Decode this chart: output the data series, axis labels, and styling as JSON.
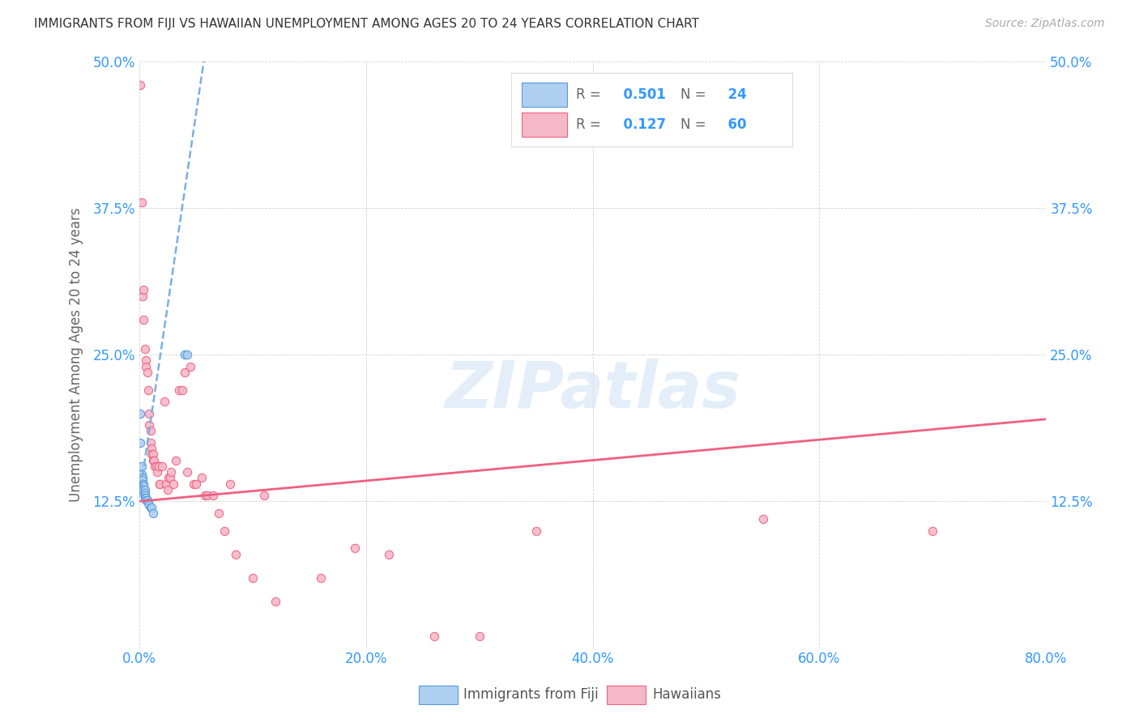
{
  "title": "IMMIGRANTS FROM FIJI VS HAWAIIAN UNEMPLOYMENT AMONG AGES 20 TO 24 YEARS CORRELATION CHART",
  "source": "Source: ZipAtlas.com",
  "ylabel": "Unemployment Among Ages 20 to 24 years",
  "xlim": [
    0.0,
    0.8
  ],
  "ylim": [
    0.0,
    0.5
  ],
  "legend_label1": "Immigrants from Fiji",
  "legend_label2": "Hawaiians",
  "R1": 0.501,
  "N1": 24,
  "R2": 0.127,
  "N2": 60,
  "color_fiji": "#aecff0",
  "color_hawaii": "#f5b8c8",
  "color_fiji_edge": "#5599dd",
  "color_hawaii_edge": "#f06080",
  "color_fiji_line": "#7ab0e0",
  "color_hawaii_line": "#f06080",
  "watermark": "ZIPatlas",
  "fiji_x": [
    0.001,
    0.001,
    0.002,
    0.002,
    0.003,
    0.003,
    0.003,
    0.004,
    0.004,
    0.004,
    0.005,
    0.005,
    0.005,
    0.005,
    0.006,
    0.006,
    0.007,
    0.008,
    0.009,
    0.01,
    0.011,
    0.012,
    0.04,
    0.042
  ],
  "fiji_y": [
    0.2,
    0.175,
    0.155,
    0.148,
    0.145,
    0.143,
    0.14,
    0.14,
    0.138,
    0.135,
    0.135,
    0.132,
    0.13,
    0.128,
    0.128,
    0.126,
    0.126,
    0.124,
    0.122,
    0.12,
    0.12,
    0.115,
    0.25,
    0.25
  ],
  "hawaii_x": [
    0.001,
    0.002,
    0.003,
    0.004,
    0.004,
    0.005,
    0.006,
    0.006,
    0.007,
    0.008,
    0.009,
    0.009,
    0.01,
    0.01,
    0.011,
    0.011,
    0.012,
    0.012,
    0.013,
    0.014,
    0.015,
    0.016,
    0.017,
    0.018,
    0.018,
    0.02,
    0.022,
    0.024,
    0.025,
    0.026,
    0.027,
    0.028,
    0.03,
    0.032,
    0.035,
    0.038,
    0.04,
    0.042,
    0.045,
    0.048,
    0.05,
    0.055,
    0.058,
    0.06,
    0.065,
    0.07,
    0.075,
    0.08,
    0.085,
    0.1,
    0.11,
    0.12,
    0.16,
    0.19,
    0.22,
    0.26,
    0.3,
    0.35,
    0.55,
    0.7
  ],
  "hawaii_y": [
    0.48,
    0.38,
    0.3,
    0.28,
    0.305,
    0.255,
    0.245,
    0.24,
    0.235,
    0.22,
    0.2,
    0.19,
    0.185,
    0.175,
    0.17,
    0.165,
    0.165,
    0.16,
    0.16,
    0.155,
    0.155,
    0.15,
    0.155,
    0.14,
    0.14,
    0.155,
    0.21,
    0.14,
    0.135,
    0.145,
    0.145,
    0.15,
    0.14,
    0.16,
    0.22,
    0.22,
    0.235,
    0.15,
    0.24,
    0.14,
    0.14,
    0.145,
    0.13,
    0.13,
    0.13,
    0.115,
    0.1,
    0.14,
    0.08,
    0.06,
    0.13,
    0.04,
    0.06,
    0.085,
    0.08,
    0.01,
    0.01,
    0.1,
    0.11,
    0.1
  ],
  "xtick_vals": [
    0.0,
    0.2,
    0.4,
    0.6,
    0.8
  ],
  "xtick_labels": [
    "0.0%",
    "20.0%",
    "40.0%",
    "60.0%",
    "80.0%"
  ],
  "ytick_vals": [
    0.0,
    0.125,
    0.25,
    0.375,
    0.5
  ],
  "ytick_labels": [
    "",
    "12.5%",
    "25.0%",
    "37.5%",
    "50.0%"
  ]
}
